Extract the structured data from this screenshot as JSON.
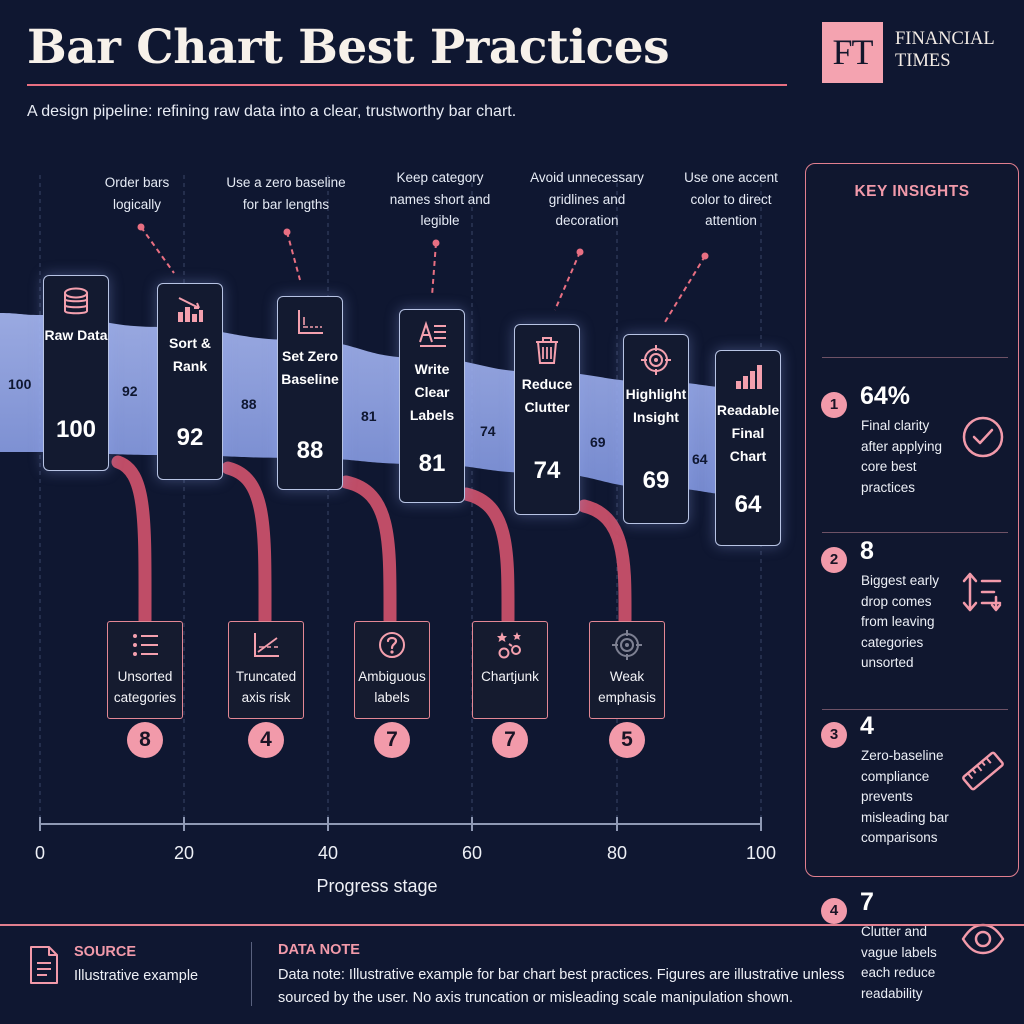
{
  "header": {
    "title": "Bar Chart Best Practices",
    "subtitle": "A design pipeline: refining raw data into a clear, trustworthy bar chart.",
    "brand_mark": "FT",
    "brand_name": "FINANCIAL TIMES"
  },
  "stages": [
    {
      "name": "Raw Data",
      "value": "100",
      "icon": "database-icon"
    },
    {
      "name": "Sort & Rank",
      "value": "92",
      "icon": "sort-bars-icon"
    },
    {
      "name": "Set Zero Baseline",
      "value": "88",
      "icon": "baseline-axis-icon"
    },
    {
      "name": "Write Clear Labels",
      "value": "81",
      "icon": "text-label-icon"
    },
    {
      "name": "Reduce Clutter",
      "value": "74",
      "icon": "trash-icon"
    },
    {
      "name": "Highlight Insight",
      "value": "69",
      "icon": "target-icon"
    },
    {
      "name": "Readable Final Chart",
      "value": "64",
      "icon": "bar-chart-icon"
    }
  ],
  "flow_labels": [
    "100",
    "92",
    "88",
    "81",
    "74",
    "69",
    "64"
  ],
  "callouts": [
    "Order bars logically",
    "Use a zero baseline for bar lengths",
    "Keep category names short and legible",
    "Avoid unnecessary gridlines and decoration",
    "Use one accent color to direct attention"
  ],
  "issues": [
    {
      "name": "Unsorted categories",
      "value": "8",
      "icon": "unsorted-list-icon"
    },
    {
      "name": "Truncated axis risk",
      "value": "4",
      "icon": "truncated-axis-icon"
    },
    {
      "name": "Ambiguous labels",
      "value": "7",
      "icon": "question-icon"
    },
    {
      "name": "Chartjunk",
      "value": "7",
      "icon": "chartjunk-icon"
    },
    {
      "name": "Weak emphasis",
      "value": "5",
      "icon": "weak-target-icon"
    }
  ],
  "axis": {
    "label": "Progress stage",
    "ticks": [
      "0",
      "20",
      "40",
      "60",
      "80",
      "100"
    ]
  },
  "insights": {
    "title": "KEY INSIGHTS",
    "items": [
      {
        "number": "1",
        "value": "64%",
        "desc": "Final clarity after applying core best practices",
        "icon": "check-circle-icon"
      },
      {
        "number": "2",
        "value": "8",
        "desc": "Biggest early drop comes from leaving categories unsorted",
        "icon": "sort-arrows-icon"
      },
      {
        "number": "3",
        "value": "4",
        "desc": "Zero-baseline compliance prevents misleading bar comparisons",
        "icon": "ruler-icon"
      },
      {
        "number": "4",
        "value": "7",
        "desc": "Clutter and vague labels each reduce readability",
        "icon": "eye-icon"
      }
    ]
  },
  "footer": {
    "source_title": "SOURCE",
    "source_text": "Illustrative example",
    "note_title": "DATA NOTE",
    "note_text": "Data note: Illustrative example for bar chart best practices. Figures are illustrative unless sourced by the user. No axis truncation or misleading scale manipulation shown."
  },
  "colors": {
    "background": "#0f1731",
    "accent": "#f29aaa",
    "flow": "#8ea3e6",
    "leak": "#c9506a"
  }
}
